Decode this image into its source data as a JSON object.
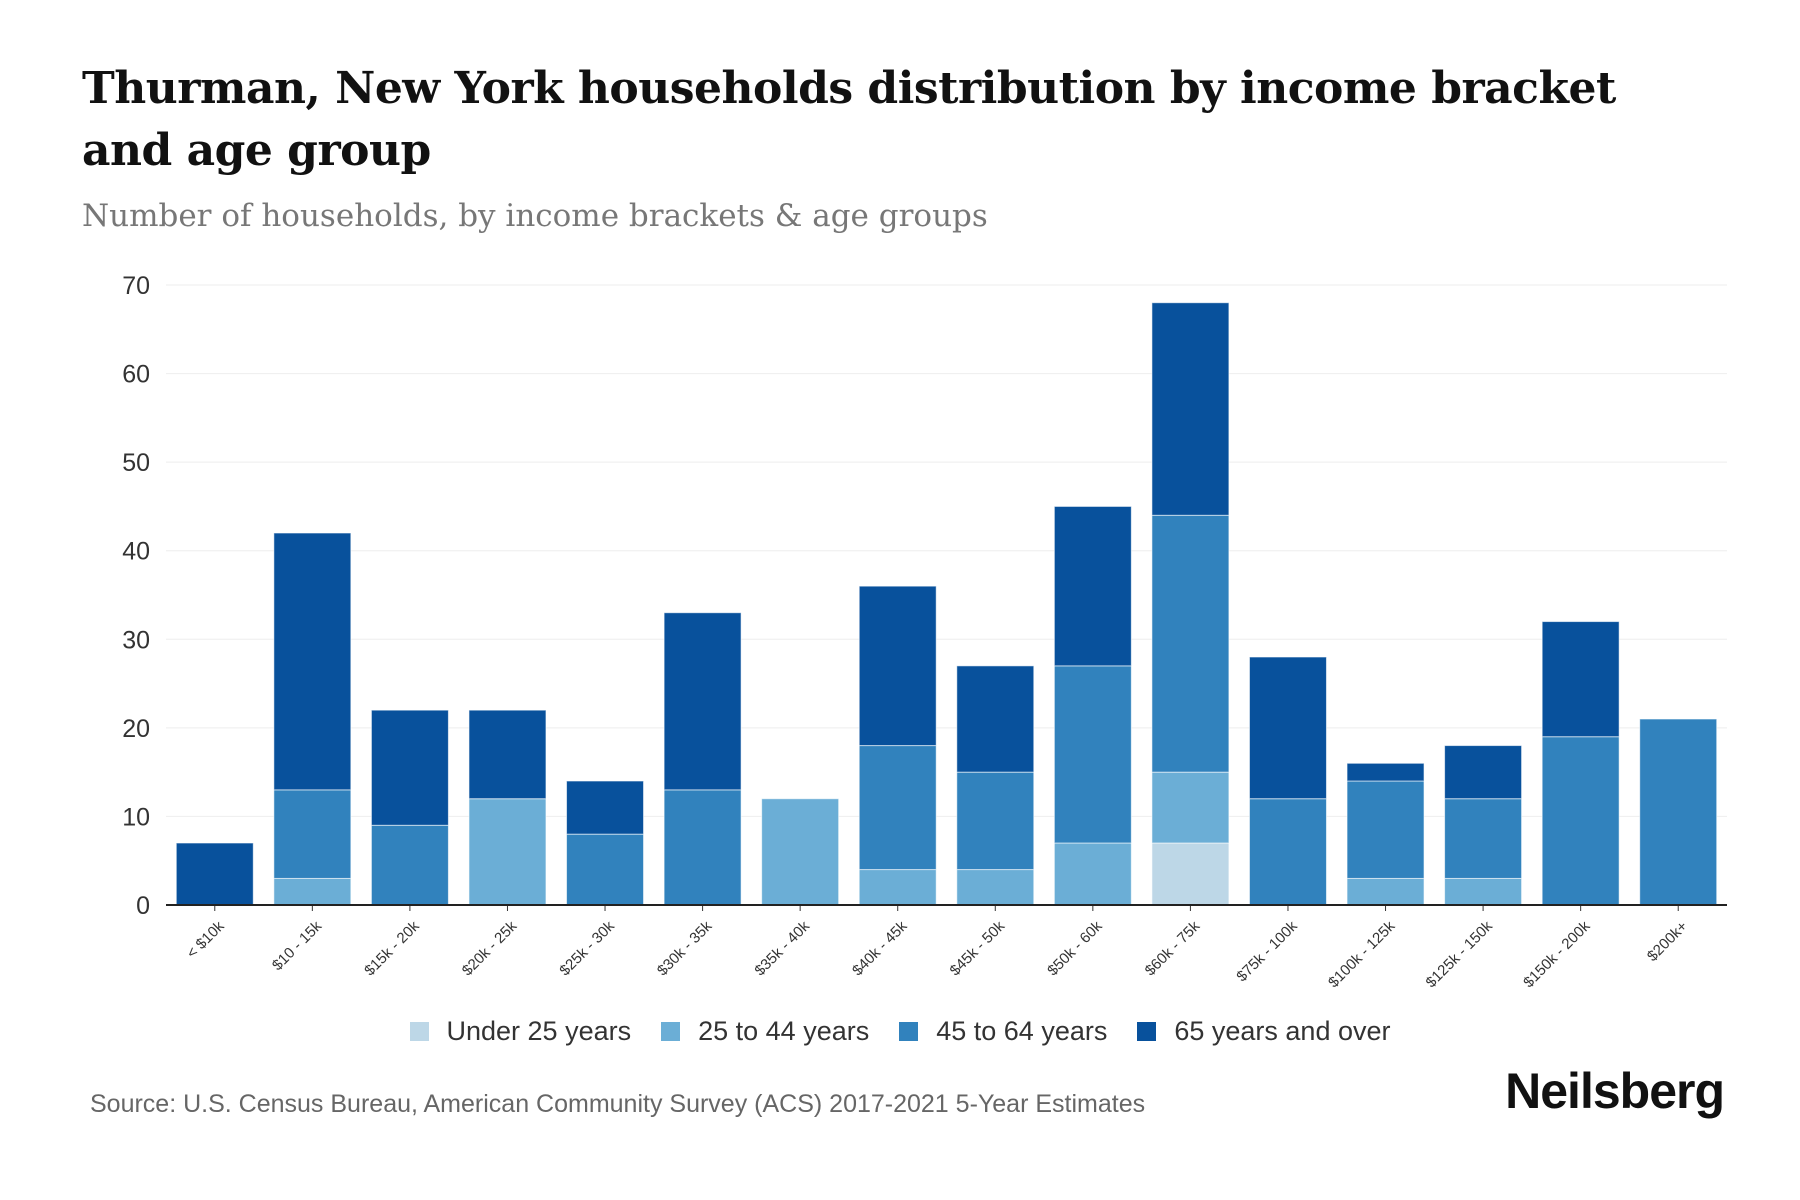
{
  "chart_data": {
    "type": "bar",
    "stacked": true,
    "title": "Thurman, New York households distribution by income bracket and age group",
    "subtitle": "Number of households, by income brackets & age groups",
    "xlabel": "",
    "ylabel": "",
    "ylim": [
      0,
      70
    ],
    "yticks": [
      "0",
      "10",
      "20",
      "30",
      "40",
      "50",
      "60",
      "70"
    ],
    "grid": true,
    "legend_position": "bottom",
    "categories": [
      "< $10k",
      "$10 - 15k",
      "$15k - 20k",
      "$20k - 25k",
      "$25k - 30k",
      "$30k - 35k",
      "$35k - 40k",
      "$40k - 45k",
      "$45k - 50k",
      "$50k - 60k",
      "$60k - 75k",
      "$75k - 100k",
      "$100k - 125k",
      "$125k - 150k",
      "$150k - 200k",
      "$200k+"
    ],
    "series": [
      {
        "name": "Under 25 years",
        "color": "#bdd7e7",
        "values": [
          0,
          0,
          0,
          0,
          0,
          0,
          0,
          0,
          0,
          0,
          7,
          0,
          0,
          0,
          0,
          0
        ]
      },
      {
        "name": "25 to 44 years",
        "color": "#6baed6",
        "values": [
          0,
          3,
          0,
          12,
          0,
          0,
          12,
          4,
          4,
          7,
          8,
          0,
          3,
          3,
          0,
          0
        ]
      },
      {
        "name": "45 to 64 years",
        "color": "#3182bd",
        "values": [
          0,
          10,
          9,
          0,
          8,
          13,
          0,
          14,
          11,
          20,
          29,
          12,
          11,
          9,
          19,
          21
        ]
      },
      {
        "name": "65 years and over",
        "color": "#08519c",
        "values": [
          7,
          29,
          13,
          10,
          6,
          20,
          0,
          18,
          12,
          18,
          24,
          16,
          2,
          6,
          13,
          0
        ]
      }
    ]
  },
  "source": "Source: U.S. Census Bureau, American Community Survey (ACS) 2017-2021 5-Year Estimates",
  "logo": "Neilsberg"
}
